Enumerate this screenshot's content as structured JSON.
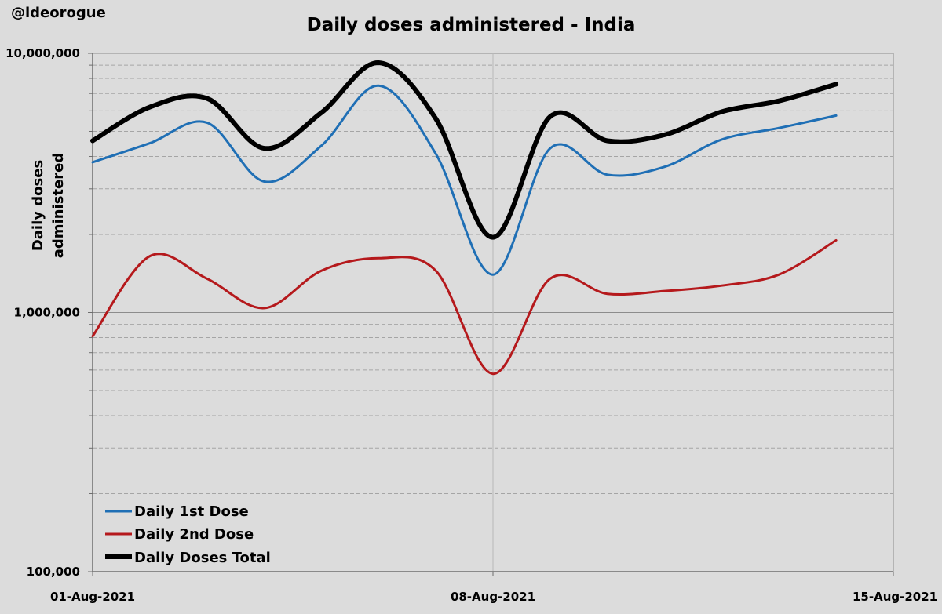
{
  "watermark": "@ideorogue",
  "chart_data": {
    "type": "line",
    "title": "Daily doses  administered - India",
    "ylabel_lines": [
      "Daily doses",
      "administered"
    ],
    "yscale": "log",
    "ylim": [
      100000,
      10000000
    ],
    "ytick_labels": [
      "10,000,000",
      "1,000,000",
      "100,000"
    ],
    "xtick_labels": [
      "01-Aug-2021",
      "08-Aug-2021",
      "15-Aug-2021"
    ],
    "xlim": [
      "2021-08-01",
      "2021-08-15"
    ],
    "grid": "horizontal dashed minor gridlines, solid major gridlines, vertical line at 08-Aug-2021",
    "legend_position": "bottom-left",
    "x": [
      "2021-08-01",
      "2021-08-02",
      "2021-08-03",
      "2021-08-04",
      "2021-08-05",
      "2021-08-06",
      "2021-08-07",
      "2021-08-08",
      "2021-08-09",
      "2021-08-10",
      "2021-08-11",
      "2021-08-12",
      "2021-08-13",
      "2021-08-14"
    ],
    "series": [
      {
        "name": "Daily 1st  Dose",
        "color": "#1f6fb5",
        "width": 3,
        "values": [
          3800000,
          4500000,
          5400000,
          3200000,
          4400000,
          7500000,
          4100000,
          1400000,
          4300000,
          3400000,
          3650000,
          4650000,
          5150000,
          5750000
        ]
      },
      {
        "name": "Daily 2nd Dose",
        "color": "#b5191c",
        "width": 3,
        "values": [
          810000,
          1650000,
          1350000,
          1040000,
          1450000,
          1620000,
          1450000,
          580000,
          1350000,
          1180000,
          1210000,
          1270000,
          1400000,
          1900000
        ]
      },
      {
        "name": "Daily Doses Total",
        "color": "#000000",
        "width": 6,
        "values": [
          4600000,
          6200000,
          6700000,
          4300000,
          5900000,
          9200000,
          5600000,
          1950000,
          5700000,
          4600000,
          4850000,
          5950000,
          6550000,
          7600000
        ]
      }
    ]
  }
}
